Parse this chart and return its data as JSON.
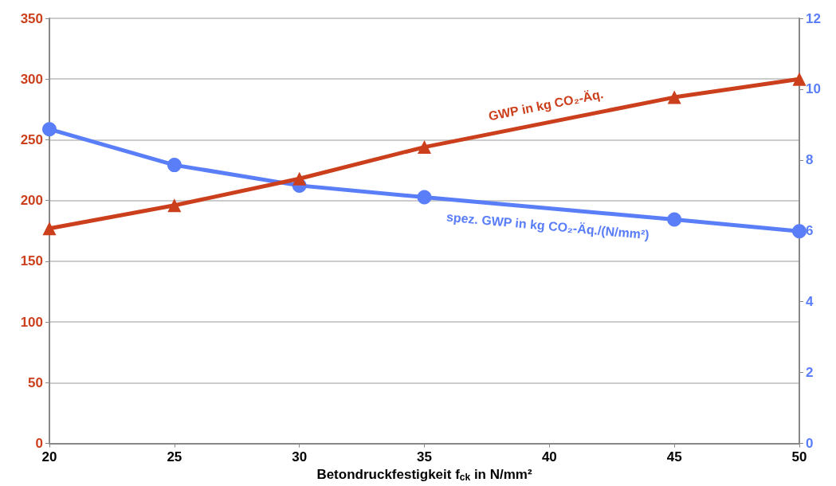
{
  "chart_data": {
    "type": "line",
    "xlabel": "Betondruckfestigkeit f$_{ck}$ in N/mm²",
    "x": [
      20,
      25,
      30,
      35,
      45,
      50
    ],
    "xlim": [
      20,
      50
    ],
    "xticks": [
      20,
      25,
      30,
      35,
      40,
      45,
      50
    ],
    "ylim": [
      0,
      350
    ],
    "yticks": [
      0,
      50,
      100,
      150,
      200,
      250,
      300,
      350
    ],
    "y2lim": [
      0,
      12
    ],
    "y2ticks": [
      0,
      2,
      4,
      6,
      8,
      10,
      12
    ],
    "grid": "y",
    "line_style": "solid",
    "series": [
      {
        "name": "GWP in kg CO₂-Äq.",
        "color": "#cc3f1c",
        "marker": "triangle",
        "values": [
          177,
          196,
          218,
          244,
          285,
          300
        ]
      },
      {
        "name": "spez. GWP in kg CO₂-Äq./(N/mm²)",
        "color": "#5a7df8",
        "marker": "circle",
        "axis": "y2",
        "values": [
          8.87,
          7.86,
          7.28,
          6.95,
          6.32,
          5.99
        ]
      }
    ]
  }
}
